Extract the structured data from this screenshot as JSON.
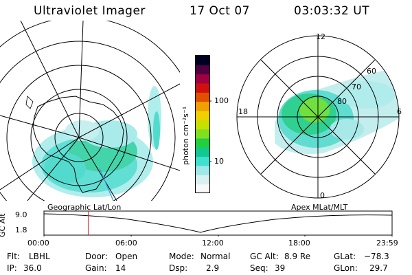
{
  "header": {
    "instrument": "Ultraviolet Imager",
    "date": "17 Oct 07",
    "time": "03:03:32 UT"
  },
  "colorbar": {
    "unit_label": "photon cm⁻²s⁻¹",
    "ticks": [
      {
        "label": "100",
        "value": 100
      },
      {
        "label": "10",
        "value": 10
      }
    ],
    "colors": [
      "#f8f8f8",
      "#d8f0f0",
      "#a0e8e8",
      "#40e0d0",
      "#10c890",
      "#20d040",
      "#80e020",
      "#c8e000",
      "#f0d000",
      "#f0a000",
      "#e05000",
      "#d01010",
      "#a00040",
      "#500040",
      "#000020"
    ]
  },
  "geo_map": {
    "label": "Geographic Lat/Lon"
  },
  "polar_map": {
    "label": "Apex MLat/MLT",
    "mlt_labels": {
      "top": "12",
      "bottom": "0",
      "left": "18",
      "right": "6"
    },
    "lat_labels": [
      "60",
      "70",
      "80"
    ]
  },
  "altitude_plot": {
    "ylabel": "GC Alt",
    "y_ticks": [
      "9.0",
      "1.8"
    ],
    "x_ticks": [
      "00:00",
      "06:00",
      "12:00",
      "18:00",
      "23:59"
    ],
    "current_time_marker": "03:03"
  },
  "status": {
    "filter_label": "Flt:",
    "filter_value": "LBHL",
    "ip_label": "IP:",
    "ip_value": "36.0",
    "door_label": "Door:",
    "door_value": "Open",
    "gain_label": "Gain:",
    "gain_value": "14",
    "mode_label": "Mode:",
    "mode_value": "Normal",
    "dsp_label": "Dsp:",
    "dsp_value": "2.9",
    "gcalt_label": "GC Alt:",
    "gcalt_value": "8.9 Re",
    "seq_label": "Seq:",
    "seq_value": "39",
    "glat_label": "GLat:",
    "glat_value": "−78.3",
    "glon_label": "GLon:",
    "glon_value": "29.7"
  }
}
